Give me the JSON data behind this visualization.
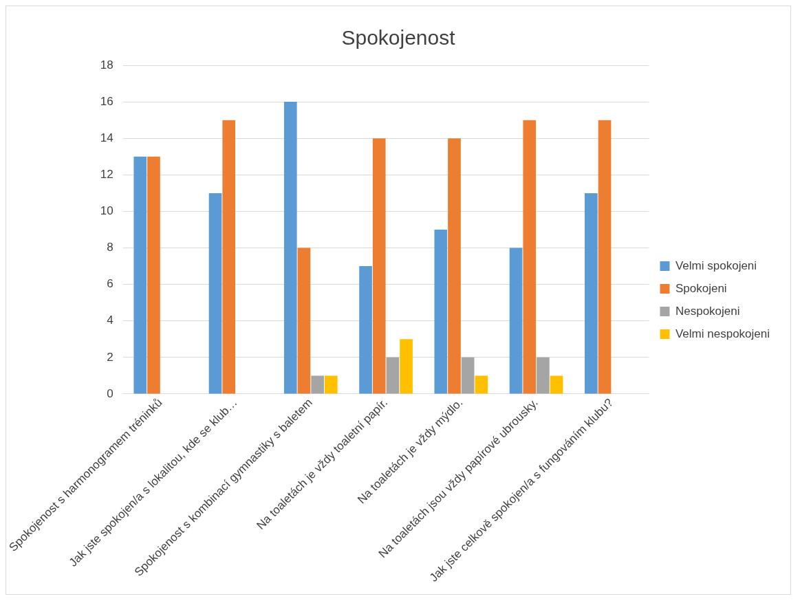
{
  "chart_data": {
    "type": "bar",
    "title": "Spokojenost",
    "categories": [
      "Spokojenost s harmonogramem tréninků",
      "Jak jste spokojen/a s lokalitou, kde se klub…",
      "Spokojenost s kombinací gymnastiky s baletem",
      "Na toaletách je vždy toaletní papír.",
      "Na toaletách je vždy mýdlo.",
      "Na toaletách jsou vždy papírové ubrousky.",
      "Jak jste celkově spokojen/a s fungováním klubu?"
    ],
    "series": [
      {
        "name": "Velmi spokojeni",
        "color": "#5b9bd5",
        "values": [
          13,
          11,
          16,
          7,
          9,
          8,
          11
        ]
      },
      {
        "name": "Spokojeni",
        "color": "#ed7d31",
        "values": [
          13,
          15,
          8,
          14,
          14,
          15,
          15
        ]
      },
      {
        "name": "Nespokojeni",
        "color": "#a5a5a5",
        "values": [
          null,
          null,
          1,
          2,
          2,
          2,
          null
        ]
      },
      {
        "name": "Velmi nespokojeni",
        "color": "#ffc000",
        "values": [
          null,
          null,
          1,
          3,
          1,
          1,
          null
        ]
      }
    ],
    "ylim": [
      0,
      18
    ],
    "yticks": [
      0,
      2,
      4,
      6,
      8,
      10,
      12,
      14,
      16,
      18
    ],
    "grid": "y",
    "legend": "right"
  }
}
